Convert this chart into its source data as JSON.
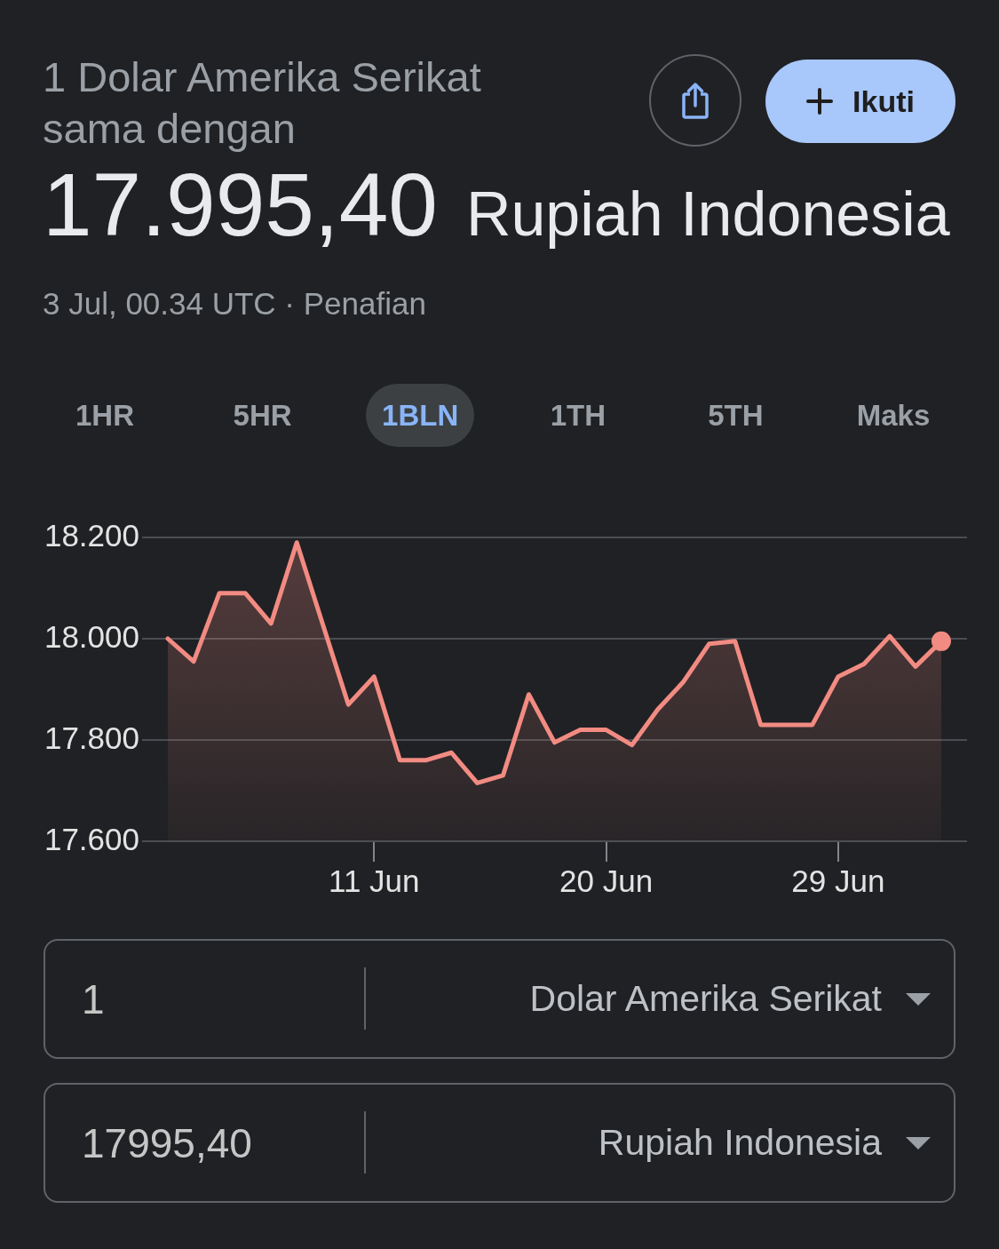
{
  "chart_data": {
    "type": "area",
    "title": "1 Dolar Amerika Serikat sama dengan",
    "subtitle": "17.995,40 Rupiah Indonesia",
    "annotations": [
      "Ikuti",
      "3 Jul, 00.34 UTC · Penafian",
      "1HR",
      "5HR",
      "1BLN",
      "1TH",
      "5TH",
      "Maks",
      "1",
      "Dolar Amerika Serikat",
      "17995,40",
      "Rupiah Indonesia"
    ],
    "x": [
      "--06-03",
      "--06-04",
      "--06-05",
      "--06-06",
      "--06-07",
      "--06-08",
      "--06-09",
      "--06-10",
      "--06-11",
      "--06-12",
      "--06-13",
      "--06-14",
      "--06-15",
      "--06-16",
      "--06-17",
      "--06-18",
      "--06-19",
      "--06-20",
      "--06-21",
      "--06-22",
      "--06-23",
      "--06-24",
      "--06-25",
      "--06-26",
      "--06-27",
      "--06-28",
      "--06-29",
      "--06-30",
      "--07-01",
      "--07-02",
      "--07-03"
    ],
    "xlim": [
      "--06-02",
      "--07-04"
    ],
    "xticks": [
      {
        "value": "--06-11",
        "label": "11 Jun"
      },
      {
        "value": "--06-20",
        "label": "20 Jun"
      },
      {
        "value": "--06-29",
        "label": "29 Jun"
      }
    ],
    "ylim": [
      17600,
      18200
    ],
    "yticks": [
      {
        "value": 17600,
        "label": "17.600"
      },
      {
        "value": 17800,
        "label": "17.800"
      },
      {
        "value": 18000,
        "label": "18.000"
      },
      {
        "value": 18200,
        "label": "18.200"
      }
    ],
    "grid": "y",
    "series": [
      {
        "color": "#f28b82",
        "values": [
          18000,
          17955,
          18090,
          18090,
          18030,
          18190,
          18030,
          17870,
          17925,
          17760,
          17760,
          17775,
          17715,
          17730,
          17890,
          17795,
          17820,
          17820,
          17790,
          17860,
          17915,
          17990,
          17995,
          17830,
          17830,
          17830,
          17925,
          17950,
          18005,
          17945,
          17995
        ]
      },
      {
        "type": "scatter",
        "color": "#f28b82",
        "x": [
          "--07-03"
        ],
        "values": [
          17995
        ],
        "marker": "circle"
      }
    ]
  }
}
